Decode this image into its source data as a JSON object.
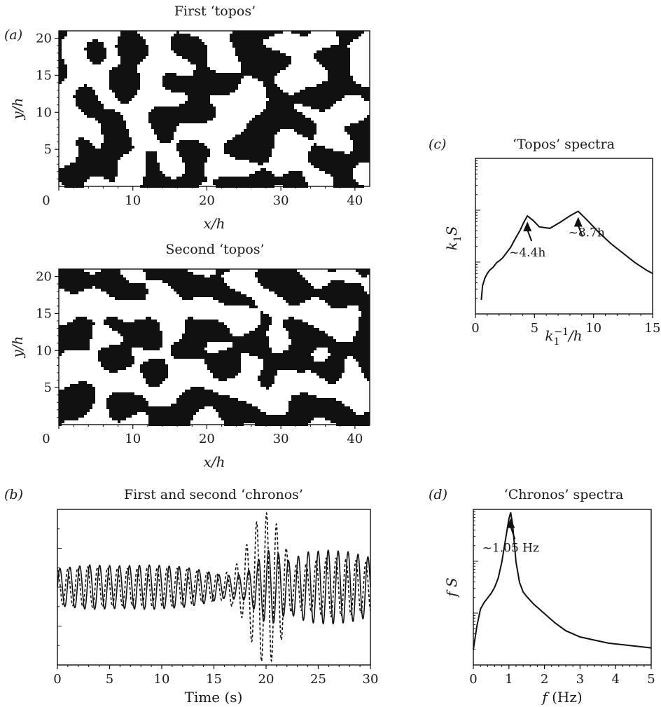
{
  "panels": {
    "a": {
      "label": "(a)",
      "top_title": "First ‘topos’",
      "bottom_title": "Second ‘topos’",
      "xlabel": "x/h",
      "ylabel": "y/h"
    },
    "b": {
      "label": "(b)",
      "title": "First and second ‘chronos’",
      "xlabel": "Time (s)"
    },
    "c": {
      "label": "(c)",
      "title": "‘Topos’ spectra",
      "xlabel": "k1−1/h",
      "ylabel": "k1S"
    },
    "d": {
      "label": "(d)",
      "title": "‘Chronos’ spectra",
      "xlabel": "f (Hz)",
      "ylabel": "f S"
    }
  },
  "chart_data": [
    {
      "id": "topos-1",
      "type": "heatmap",
      "title": "First ‘topos’",
      "xlabel": "x/h",
      "ylabel": "y/h",
      "xlim": [
        0,
        42
      ],
      "ylim": [
        0,
        21
      ],
      "xticks": [
        0,
        10,
        20,
        30,
        40
      ],
      "yticks": [
        5,
        10,
        15,
        20
      ],
      "colors": {
        "positive": "#111111",
        "negative": "#ffffff"
      },
      "seed": 7
    },
    {
      "id": "topos-2",
      "type": "heatmap",
      "title": "Second ‘topos’",
      "xlabel": "x/h",
      "ylabel": "y/h",
      "xlim": [
        0,
        42
      ],
      "ylim": [
        0,
        21
      ],
      "xticks": [
        0,
        10,
        20,
        30,
        40
      ],
      "yticks": [
        5,
        10,
        15,
        20
      ],
      "colors": {
        "positive": "#111111",
        "negative": "#ffffff"
      },
      "seed": 19
    },
    {
      "id": "chronos",
      "type": "line",
      "title": "First and second ‘chronos’",
      "xlabel": "Time (s)",
      "xlim": [
        0,
        30
      ],
      "xticks": [
        0,
        5,
        10,
        15,
        20,
        25,
        30
      ],
      "ylim": [
        -4.2,
        4.2
      ],
      "frequency_hz": 1.05,
      "series": [
        {
          "style": "solid",
          "envelope_t": [
            0,
            3,
            6,
            9,
            12,
            14,
            16,
            18,
            19,
            20,
            21,
            22,
            24,
            26,
            28,
            30
          ],
          "envelope_a": [
            1.0,
            1.2,
            1.15,
            1.2,
            1.1,
            0.9,
            0.6,
            0.7,
            1.3,
            2.0,
            1.9,
            1.4,
            1.9,
            2.0,
            1.9,
            1.6
          ]
        },
        {
          "style": "dashed",
          "envelope_t": [
            0,
            3,
            6,
            9,
            12,
            14,
            16,
            17.5,
            18.5,
            19.5,
            20.5,
            21.5,
            22.5,
            24,
            26,
            28,
            30
          ],
          "envelope_a": [
            0.9,
            1.1,
            1.0,
            1.05,
            1.0,
            0.8,
            0.7,
            1.4,
            2.8,
            4.0,
            4.0,
            2.8,
            1.2,
            1.3,
            1.6,
            1.5,
            1.3
          ]
        }
      ]
    },
    {
      "id": "topos-spectra",
      "type": "line",
      "title": "‘Topos’ spectra",
      "xlabel": "k1−1/h",
      "ylabel": "k1S",
      "xlim": [
        0,
        15
      ],
      "xticks": [
        0,
        5,
        10,
        15
      ],
      "ylim": [
        0,
        10
      ],
      "x": [
        0.5,
        0.6,
        0.8,
        1.0,
        1.2,
        1.5,
        1.8,
        2.0,
        2.3,
        2.6,
        2.8,
        3.0,
        3.2,
        3.5,
        3.8,
        4.1,
        4.4,
        4.9,
        5.4,
        6.3,
        7.2,
        8.0,
        8.7,
        9.5,
        10.5,
        11.5,
        12.5,
        13.5,
        14.5,
        15.0
      ],
      "y": [
        0.9,
        1.8,
        2.3,
        2.6,
        2.8,
        3.0,
        3.3,
        3.4,
        3.6,
        3.9,
        4.1,
        4.3,
        4.6,
        5.0,
        5.4,
        5.9,
        6.3,
        6.0,
        5.6,
        5.5,
        5.9,
        6.3,
        6.6,
        6.0,
        5.2,
        4.5,
        3.9,
        3.3,
        2.8,
        2.6
      ],
      "annotations": [
        {
          "text": "~4.4h",
          "x": 4.4
        },
        {
          "text": "~8.7h",
          "x": 8.7
        }
      ]
    },
    {
      "id": "chronos-spectra",
      "type": "line",
      "title": "‘Chronos’ spectra",
      "xlabel": "f (Hz)",
      "ylabel": "f S",
      "xlim": [
        0,
        5
      ],
      "xticks": [
        0,
        1,
        2,
        3,
        4,
        5
      ],
      "ylim": [
        0,
        10
      ],
      "x": [
        0.0,
        0.1,
        0.2,
        0.3,
        0.4,
        0.5,
        0.6,
        0.7,
        0.8,
        0.9,
        1.0,
        1.05,
        1.1,
        1.2,
        1.3,
        1.4,
        1.5,
        1.7,
        2.0,
        2.3,
        2.6,
        3.0,
        3.4,
        3.8,
        4.2,
        4.6,
        5.0
      ],
      "y": [
        1.0,
        2.5,
        3.6,
        4.0,
        4.3,
        4.6,
        5.0,
        5.6,
        6.6,
        8.0,
        9.4,
        9.8,
        9.1,
        6.6,
        5.3,
        4.7,
        4.4,
        3.9,
        3.3,
        2.7,
        2.2,
        1.8,
        1.6,
        1.4,
        1.3,
        1.2,
        1.1
      ],
      "annotations": [
        {
          "text": "~1.05 Hz",
          "x": 1.05
        }
      ]
    }
  ]
}
